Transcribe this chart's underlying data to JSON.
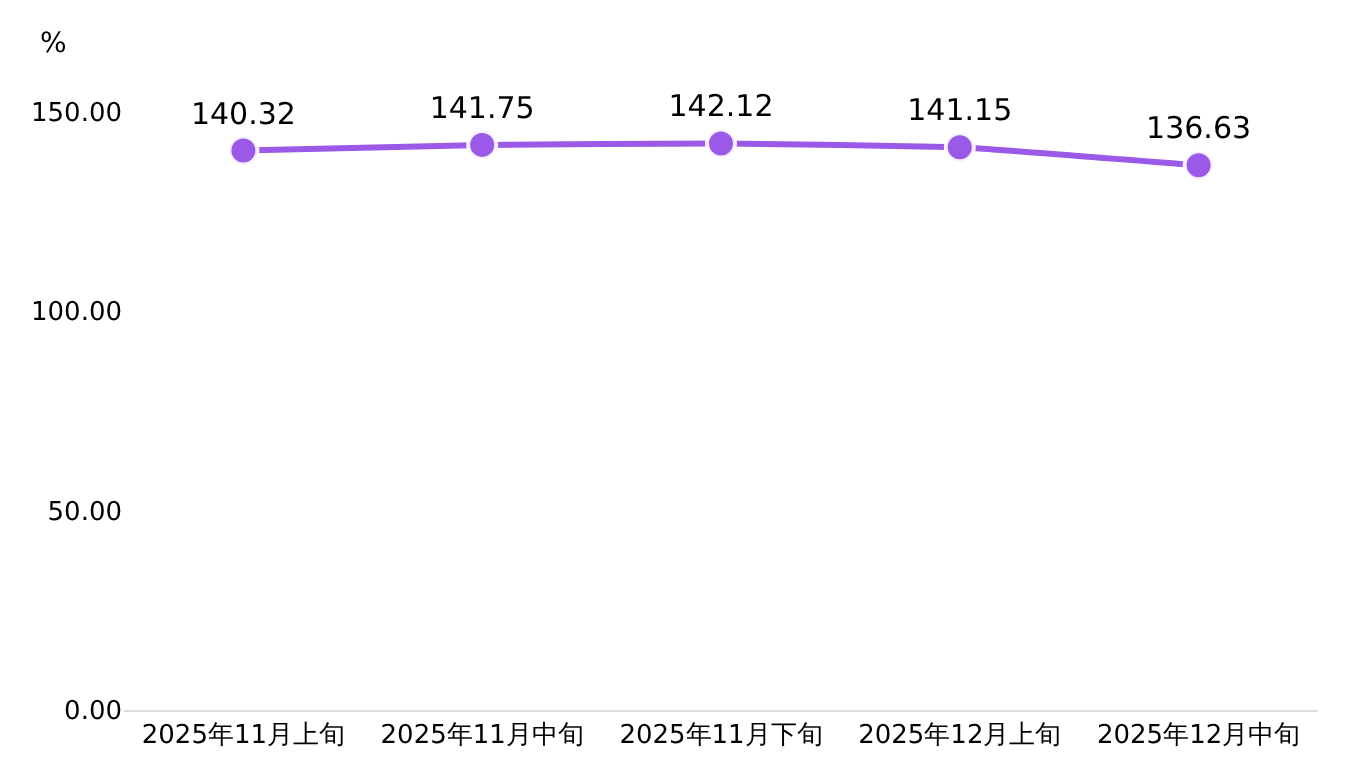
{
  "chart_data": {
    "type": "line",
    "ylabel": "%",
    "categories": [
      "2025年11月上旬",
      "2025年11月中旬",
      "2025年11月下旬",
      "2025年12月上旬",
      "2025年12月中旬"
    ],
    "series": [
      {
        "color": "#9b59e8",
        "values": [
          140.32,
          141.75,
          142.12,
          141.15,
          136.63
        ]
      }
    ],
    "ylim": [
      0,
      150
    ],
    "yticks": [
      {
        "value": 0,
        "label": "0.00"
      },
      {
        "value": 50,
        "label": "50.00"
      },
      {
        "value": 100,
        "label": "100.00"
      },
      {
        "value": 150,
        "label": "150.00"
      }
    ],
    "data_labels": true,
    "marker": "circle",
    "line_style": "solid"
  }
}
